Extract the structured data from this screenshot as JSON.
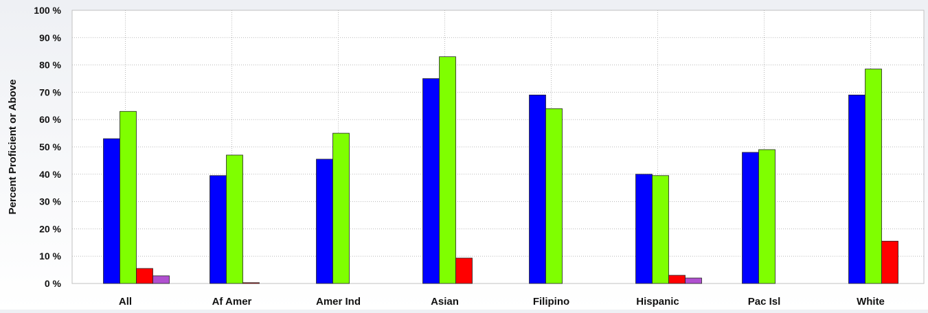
{
  "chart_data": {
    "type": "bar",
    "ylabel": "Percent Proficient or Above",
    "xlabel": "",
    "ylim": [
      0,
      100
    ],
    "yticks": [
      "0 %",
      "10 %",
      "20 %",
      "30 %",
      "40 %",
      "50 %",
      "60 %",
      "70 %",
      "80 %",
      "90 %",
      "100 %"
    ],
    "grid": true,
    "categories": [
      "All",
      "Af Amer",
      "Amer Ind",
      "Asian",
      "Filipino",
      "Hispanic",
      "Pac Isl",
      "White"
    ],
    "series": [
      {
        "color": "#0000ff",
        "values": [
          53,
          39.5,
          45.5,
          75,
          69,
          40,
          48,
          69
        ]
      },
      {
        "color": "#7fff00",
        "values": [
          63,
          47,
          55,
          83,
          64,
          39.5,
          49,
          78.5
        ]
      },
      {
        "color": "#ff0000",
        "values": [
          5.5,
          0.3,
          null,
          9.3,
          null,
          3,
          null,
          15.5
        ]
      },
      {
        "color": "#b050d0",
        "values": [
          2.8,
          null,
          null,
          null,
          null,
          2,
          null,
          null
        ]
      }
    ]
  }
}
